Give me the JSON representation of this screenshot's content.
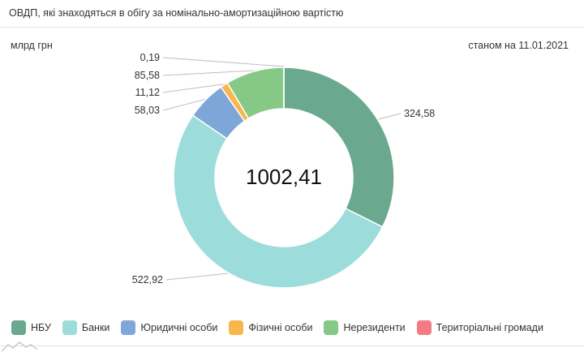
{
  "header": {
    "title": "ОВДП, які знаходяться в обігу за номінально-амортизаційною вартістю"
  },
  "unit_label": "млрд грн",
  "as_of_label": "станом на 11.01.2021",
  "chart_data": {
    "type": "pie",
    "variant": "donut",
    "total_label": "1002,41",
    "slices": [
      {
        "name": "НБУ",
        "value": 324.58,
        "label": "324,58",
        "color": "#6aa88f"
      },
      {
        "name": "Банки",
        "value": 522.92,
        "label": "522,92",
        "color": "#9cdddb"
      },
      {
        "name": "Юридичні особи",
        "value": 58.03,
        "label": "58,03",
        "color": "#7fa6d9"
      },
      {
        "name": "Фізичні особи",
        "value": 11.12,
        "label": "11,12",
        "color": "#f8b74a"
      },
      {
        "name": "Нерезиденти",
        "value": 85.58,
        "label": "85,58",
        "color": "#86c987"
      },
      {
        "name": "Територіальні громади",
        "value": 0.19,
        "label": "0,19",
        "color": "#f37c82"
      }
    ],
    "legend_position": "bottom"
  }
}
